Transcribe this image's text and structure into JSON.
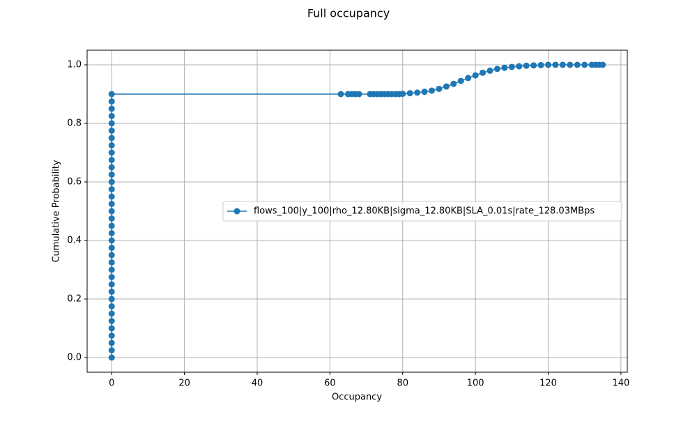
{
  "chart_data": {
    "type": "line",
    "title": "Full occupancy",
    "x_label": "Occupancy",
    "y_label": "Cumulative Probability",
    "x": [
      0,
      0,
      0,
      0,
      0,
      0,
      0,
      0,
      0,
      0,
      0,
      0,
      0,
      0,
      0,
      0,
      0,
      0,
      0,
      0,
      0,
      0,
      0,
      0,
      0,
      0,
      0,
      0,
      0,
      0,
      0,
      0,
      0,
      0,
      0,
      0,
      0,
      63,
      65,
      66,
      67,
      68,
      71,
      72,
      73,
      74,
      75,
      76,
      77,
      78,
      79,
      80,
      82,
      84,
      86,
      88,
      90,
      92,
      94,
      96,
      98,
      100,
      102,
      104,
      106,
      108,
      110,
      112,
      114,
      116,
      118,
      120,
      122,
      124,
      126,
      128,
      130,
      132,
      133,
      134,
      135
    ],
    "series": [
      {
        "name": "flows_100|y_100|rho_12.80KB|sigma_12.80KB|SLA_0.01s|rate_128.03MBps",
        "color": "#1f77b4",
        "values": [
          0,
          0.025,
          0.05,
          0.075,
          0.1,
          0.125,
          0.15,
          0.175,
          0.2,
          0.225,
          0.25,
          0.275,
          0.3,
          0.325,
          0.35,
          0.375,
          0.4,
          0.425,
          0.45,
          0.475,
          0.5,
          0.525,
          0.55,
          0.575,
          0.6,
          0.625,
          0.65,
          0.675,
          0.7,
          0.725,
          0.75,
          0.775,
          0.8,
          0.825,
          0.85,
          0.875,
          0.9,
          0.9,
          0.9,
          0.9,
          0.9,
          0.9,
          0.9,
          0.9,
          0.9,
          0.9,
          0.9,
          0.9,
          0.9,
          0.9,
          0.9,
          0.901,
          0.903,
          0.905,
          0.908,
          0.912,
          0.918,
          0.926,
          0.935,
          0.945,
          0.955,
          0.964,
          0.973,
          0.98,
          0.986,
          0.99,
          0.993,
          0.995,
          0.997,
          0.998,
          0.999,
          1.0,
          1.0,
          1.0,
          1.0,
          1.0,
          1.0,
          1.0,
          1.0,
          1.0,
          1.0
        ]
      }
    ],
    "xlim": [
      -6.75,
      141.75
    ],
    "ylim": [
      -0.05,
      1.05
    ],
    "xticks": [
      0,
      20,
      40,
      60,
      80,
      100,
      120,
      140
    ],
    "yticks": [
      {
        "value": 0,
        "label": "0.0"
      },
      0.2,
      0.4,
      0.6,
      0.8,
      {
        "value": 1,
        "label": "1.0"
      }
    ],
    "grid": true,
    "legend": "center right"
  }
}
